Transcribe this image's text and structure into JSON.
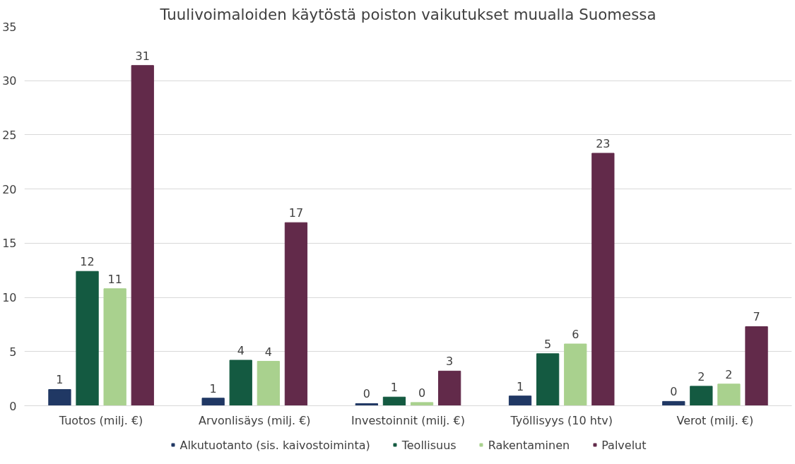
{
  "chart_data": {
    "type": "bar",
    "title": "Tuulivoimaloiden käytöstä poiston vaikutukset muualla Suomessa",
    "categories": [
      "Tuotos (milj. €)",
      "Arvonlisäys (milj. €)",
      "Investoinnit (milj. €)",
      "Työllisyys (10 htv)",
      "Verot (milj. €)"
    ],
    "series": [
      {
        "name": "Alkutuotanto (sis. kaivostoiminta)",
        "color": "#203864",
        "values": [
          1.5,
          0.7,
          0.2,
          0.9,
          0.4
        ],
        "value_labels": [
          "1",
          "1",
          "0",
          "1",
          "0"
        ]
      },
      {
        "name": "Teollisuus",
        "color": "#145a41",
        "values": [
          12.4,
          4.2,
          0.8,
          4.8,
          1.8
        ],
        "value_labels": [
          "12",
          "4",
          "1",
          "5",
          "2"
        ]
      },
      {
        "name": "Rakentaminen",
        "color": "#a9d18e",
        "values": [
          10.8,
          4.1,
          0.3,
          5.7,
          2.0
        ],
        "value_labels": [
          "11",
          "4",
          "0",
          "6",
          "2"
        ]
      },
      {
        "name": "Palvelut",
        "color": "#622a4a",
        "values": [
          31.4,
          16.9,
          3.2,
          23.3,
          7.3
        ],
        "value_labels": [
          "31",
          "17",
          "3",
          "23",
          "7"
        ]
      }
    ],
    "ylim": [
      0,
      35
    ],
    "yticks": [
      0,
      5,
      10,
      15,
      20,
      25,
      30,
      35
    ],
    "grid": "y",
    "legend": "bottom"
  }
}
